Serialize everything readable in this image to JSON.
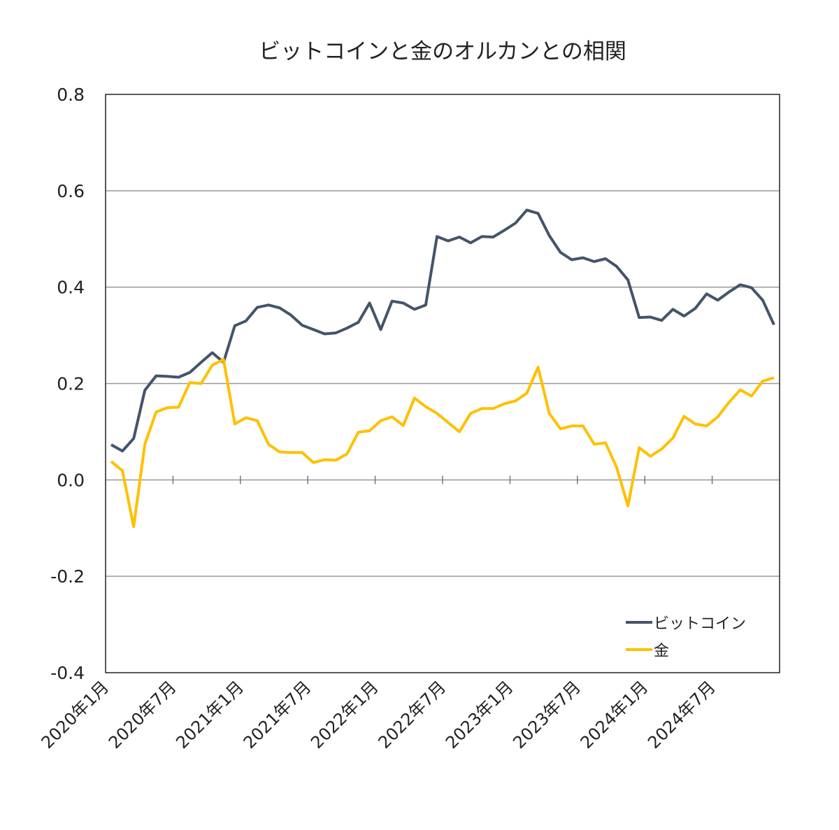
{
  "chart_data": {
    "type": "line",
    "title": "ビットコインと金のオルカンとの相関",
    "xlabel": "",
    "ylabel": "",
    "ylim": [
      -0.4,
      0.8
    ],
    "yticks": [
      "0.8",
      "0.6",
      "0.4",
      "0.2",
      "0.0",
      "-0.2",
      "-0.4"
    ],
    "ytick_values": [
      0.8,
      0.6,
      0.4,
      0.2,
      0.0,
      -0.2,
      -0.4
    ],
    "grid": true,
    "legend_position": "bottom-right",
    "start_month": "2020-01",
    "x_tick_labels": [
      "2020年1月",
      "2020年7月",
      "2021年1月",
      "2021年7月",
      "2022年1月",
      "2022年7月",
      "2023年1月",
      "2023年7月",
      "2024年1月",
      "2024年7月"
    ],
    "series": [
      {
        "name": "ビットコイン",
        "color": "#44546A",
        "values": [
          0.073,
          0.06,
          0.086,
          0.186,
          0.216,
          0.215,
          0.213,
          0.223,
          0.244,
          0.264,
          0.244,
          0.32,
          0.33,
          0.358,
          0.363,
          0.357,
          0.342,
          0.321,
          0.312,
          0.303,
          0.305,
          0.315,
          0.327,
          0.367,
          0.312,
          0.371,
          0.367,
          0.354,
          0.363,
          0.505,
          0.496,
          0.504,
          0.492,
          0.505,
          0.504,
          0.518,
          0.533,
          0.56,
          0.553,
          0.507,
          0.472,
          0.457,
          0.461,
          0.453,
          0.459,
          0.443,
          0.415,
          0.337,
          0.338,
          0.331,
          0.354,
          0.34,
          0.356,
          0.386,
          0.373,
          0.39,
          0.405,
          0.399,
          0.373,
          0.322
        ]
      },
      {
        "name": "金",
        "color": "#FFC000",
        "values": [
          0.038,
          0.019,
          -0.097,
          0.074,
          0.141,
          0.15,
          0.151,
          0.202,
          0.2,
          0.238,
          0.25,
          0.116,
          0.129,
          0.123,
          0.074,
          0.058,
          0.057,
          0.057,
          0.036,
          0.042,
          0.041,
          0.054,
          0.099,
          0.102,
          0.123,
          0.131,
          0.113,
          0.17,
          0.152,
          0.138,
          0.119,
          0.1,
          0.138,
          0.148,
          0.148,
          0.158,
          0.164,
          0.18,
          0.234,
          0.138,
          0.106,
          0.112,
          0.112,
          0.074,
          0.077,
          0.026,
          -0.054,
          0.067,
          0.049,
          0.064,
          0.087,
          0.132,
          0.116,
          0.112,
          0.131,
          0.161,
          0.187,
          0.174,
          0.205,
          0.212
        ]
      }
    ]
  }
}
